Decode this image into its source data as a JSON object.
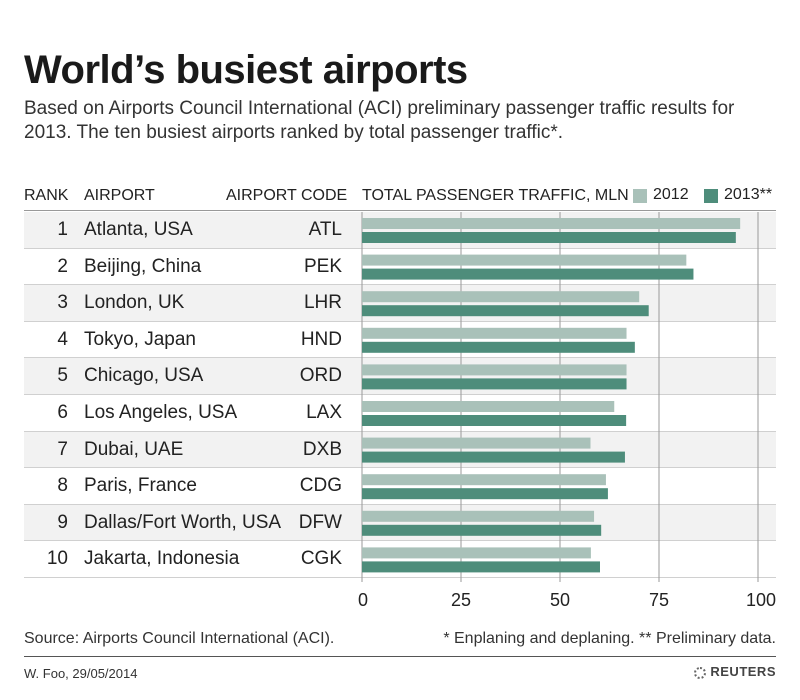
{
  "header": {
    "title": "World’s busiest airports",
    "subtitle": "Based on Airports Council International (ACI) preliminary passenger traffic results for 2013. The ten busiest airports ranked by total passenger traffic*."
  },
  "columns": {
    "rank": "RANK",
    "airport": "AIRPORT",
    "code": "AIRPORT CODE",
    "traffic": "TOTAL PASSENGER TRAFFIC, MLN"
  },
  "colors": {
    "series_2012": "#a9c1b9",
    "series_2013": "#4e8d7b",
    "row_band": "#f2f2f2"
  },
  "chart_data": {
    "type": "bar",
    "orientation": "horizontal",
    "title": "TOTAL PASSENGER TRAFFIC, MLN",
    "xlim": [
      0,
      100
    ],
    "xticks": [
      0,
      25,
      50,
      75,
      100
    ],
    "legend": [
      {
        "name": "2012",
        "color": "#a9c1b9"
      },
      {
        "name": "2013**",
        "color": "#4e8d7b"
      }
    ],
    "rows": [
      {
        "rank": "1",
        "airport": "Atlanta, USA",
        "code": "ATL"
      },
      {
        "rank": "2",
        "airport": "Beijing, China",
        "code": "PEK"
      },
      {
        "rank": "3",
        "airport": "London, UK",
        "code": "LHR"
      },
      {
        "rank": "4",
        "airport": "Tokyo, Japan",
        "code": "HND"
      },
      {
        "rank": "5",
        "airport": "Chicago, USA",
        "code": "ORD"
      },
      {
        "rank": "6",
        "airport": "Los Angeles, USA",
        "code": "LAX"
      },
      {
        "rank": "7",
        "airport": "Dubai, UAE",
        "code": "DXB"
      },
      {
        "rank": "8",
        "airport": "Paris, France",
        "code": "CDG"
      },
      {
        "rank": "9",
        "airport": "Dallas/Fort Worth, USA",
        "code": "DFW"
      },
      {
        "rank": "10",
        "airport": "Jakarta, Indonesia",
        "code": "CGK"
      }
    ],
    "series": [
      {
        "name": "2012",
        "values": [
          95.5,
          81.9,
          70.0,
          66.8,
          66.8,
          63.7,
          57.7,
          61.6,
          58.6,
          57.8
        ]
      },
      {
        "name": "2013**",
        "values": [
          94.4,
          83.7,
          72.4,
          68.9,
          66.8,
          66.7,
          66.4,
          62.1,
          60.4,
          60.1
        ]
      }
    ]
  },
  "footer": {
    "source": "Source: Airports Council International (ACI).",
    "notes": "* Enplaning and deplaning.  ** Preliminary data.",
    "byline": "W. Foo, 29/05/2014",
    "brand": "REUTERS"
  }
}
